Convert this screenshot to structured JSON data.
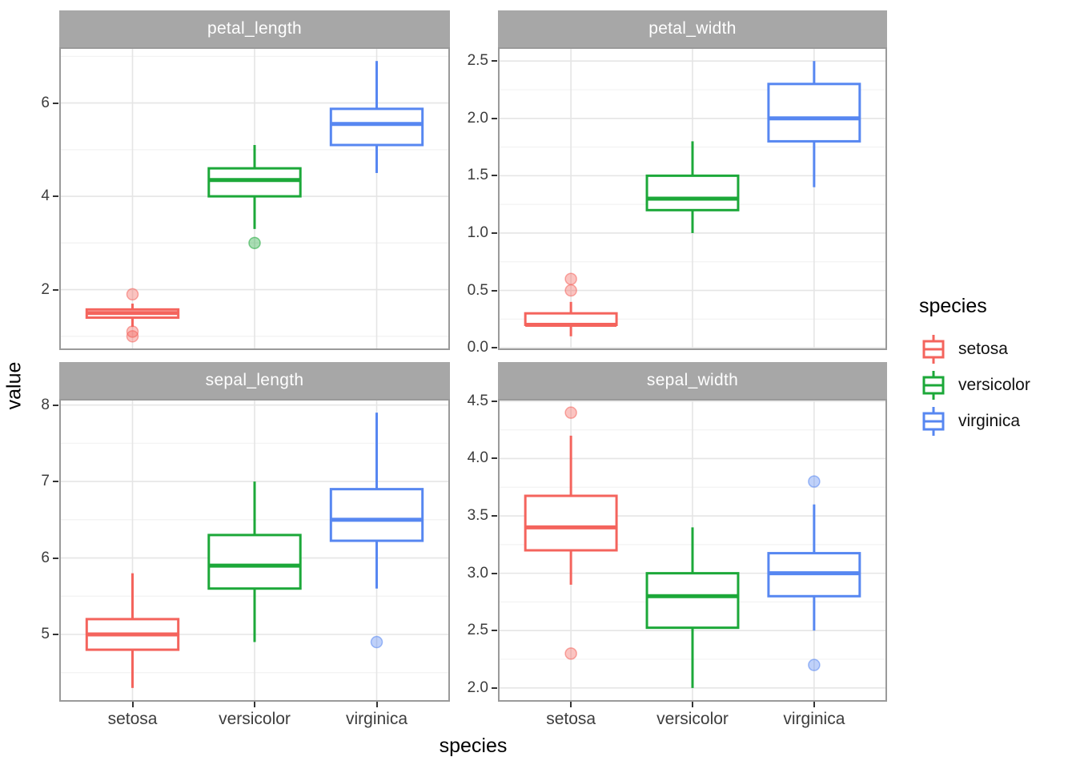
{
  "chart_data": {
    "type": "boxplot",
    "xlabel": "species",
    "ylabel": "value",
    "categories": [
      "setosa",
      "versicolor",
      "virginica"
    ],
    "legend": {
      "title": "species",
      "entries": [
        "setosa",
        "versicolor",
        "virginica"
      ]
    },
    "palette": {
      "setosa": "#F4645D",
      "versicolor": "#1CA839",
      "virginica": "#5787F1"
    },
    "style": {
      "strip_bg": "#A7A7A7",
      "strip_text": "#FFFFFF",
      "panel_border": "#9A9A9A",
      "grid_major": "#E5E5E5",
      "grid_minor": "#F3F3F3",
      "tick_mark": "#333333",
      "tick_label": "#3D3D3D",
      "axis_title": "#000000",
      "outlier_fill_opacity": 0.38,
      "outlier_stroke_opacity": 0.55
    },
    "facets": [
      {
        "name": "petal_length",
        "ylim": [
          0.705,
          7.195
        ],
        "yticks": [
          2,
          4,
          6
        ],
        "ytick_labels": [
          "2",
          "4",
          "6"
        ],
        "yticks_minor": [
          1,
          3,
          5,
          7
        ],
        "boxes": [
          {
            "species": "setosa",
            "whisker_low": 1.2,
            "q1": 1.4,
            "median": 1.5,
            "q3": 1.575,
            "whisker_high": 1.7,
            "outliers": [
              1.0,
              1.1,
              1.9
            ]
          },
          {
            "species": "versicolor",
            "whisker_low": 3.3,
            "q1": 4.0,
            "median": 4.35,
            "q3": 4.6,
            "whisker_high": 5.1,
            "outliers": [
              3.0
            ]
          },
          {
            "species": "virginica",
            "whisker_low": 4.5,
            "q1": 5.1,
            "median": 5.55,
            "q3": 5.875,
            "whisker_high": 6.9,
            "outliers": []
          }
        ]
      },
      {
        "name": "petal_width",
        "ylim": [
          -0.02,
          2.62
        ],
        "yticks": [
          0,
          0.5,
          1,
          1.5,
          2,
          2.5
        ],
        "ytick_labels": [
          "0.0",
          "0.5",
          "1.0",
          "1.5",
          "2.0",
          "2.5"
        ],
        "yticks_minor": [
          0.25,
          0.75,
          1.25,
          1.75,
          2.25
        ],
        "boxes": [
          {
            "species": "setosa",
            "whisker_low": 0.1,
            "q1": 0.2,
            "median": 0.2,
            "q3": 0.3,
            "whisker_high": 0.4,
            "outliers": [
              0.5,
              0.6
            ]
          },
          {
            "species": "versicolor",
            "whisker_low": 1.0,
            "q1": 1.2,
            "median": 1.3,
            "q3": 1.5,
            "whisker_high": 1.8,
            "outliers": []
          },
          {
            "species": "virginica",
            "whisker_low": 1.4,
            "q1": 1.8,
            "median": 2.0,
            "q3": 2.3,
            "whisker_high": 2.5,
            "outliers": []
          }
        ]
      },
      {
        "name": "sepal_length",
        "ylim": [
          4.12,
          8.08
        ],
        "yticks": [
          5,
          6,
          7,
          8
        ],
        "ytick_labels": [
          "5",
          "6",
          "7",
          "8"
        ],
        "yticks_minor": [
          4.5,
          5.5,
          6.5,
          7.5
        ],
        "boxes": [
          {
            "species": "setosa",
            "whisker_low": 4.3,
            "q1": 4.8,
            "median": 5.0,
            "q3": 5.2,
            "whisker_high": 5.8,
            "outliers": []
          },
          {
            "species": "versicolor",
            "whisker_low": 4.9,
            "q1": 5.6,
            "median": 5.9,
            "q3": 6.3,
            "whisker_high": 7.0,
            "outliers": []
          },
          {
            "species": "virginica",
            "whisker_low": 5.6,
            "q1": 6.225,
            "median": 6.5,
            "q3": 6.9,
            "whisker_high": 7.9,
            "outliers": [
              4.9
            ]
          }
        ]
      },
      {
        "name": "sepal_width",
        "ylim": [
          1.88,
          4.52
        ],
        "yticks": [
          2,
          2.5,
          3,
          3.5,
          4,
          4.5
        ],
        "ytick_labels": [
          "2.0",
          "2.5",
          "3.0",
          "3.5",
          "4.0",
          "4.5"
        ],
        "yticks_minor": [
          2.25,
          2.75,
          3.25,
          3.75,
          4.25
        ],
        "boxes": [
          {
            "species": "setosa",
            "whisker_low": 2.9,
            "q1": 3.2,
            "median": 3.4,
            "q3": 3.675,
            "whisker_high": 4.2,
            "outliers": [
              2.3,
              4.4
            ]
          },
          {
            "species": "versicolor",
            "whisker_low": 2.0,
            "q1": 2.525,
            "median": 2.8,
            "q3": 3.0,
            "whisker_high": 3.4,
            "outliers": []
          },
          {
            "species": "virginica",
            "whisker_low": 2.5,
            "q1": 2.8,
            "median": 3.0,
            "q3": 3.175,
            "whisker_high": 3.6,
            "outliers": [
              2.2,
              3.8
            ]
          }
        ]
      }
    ]
  }
}
